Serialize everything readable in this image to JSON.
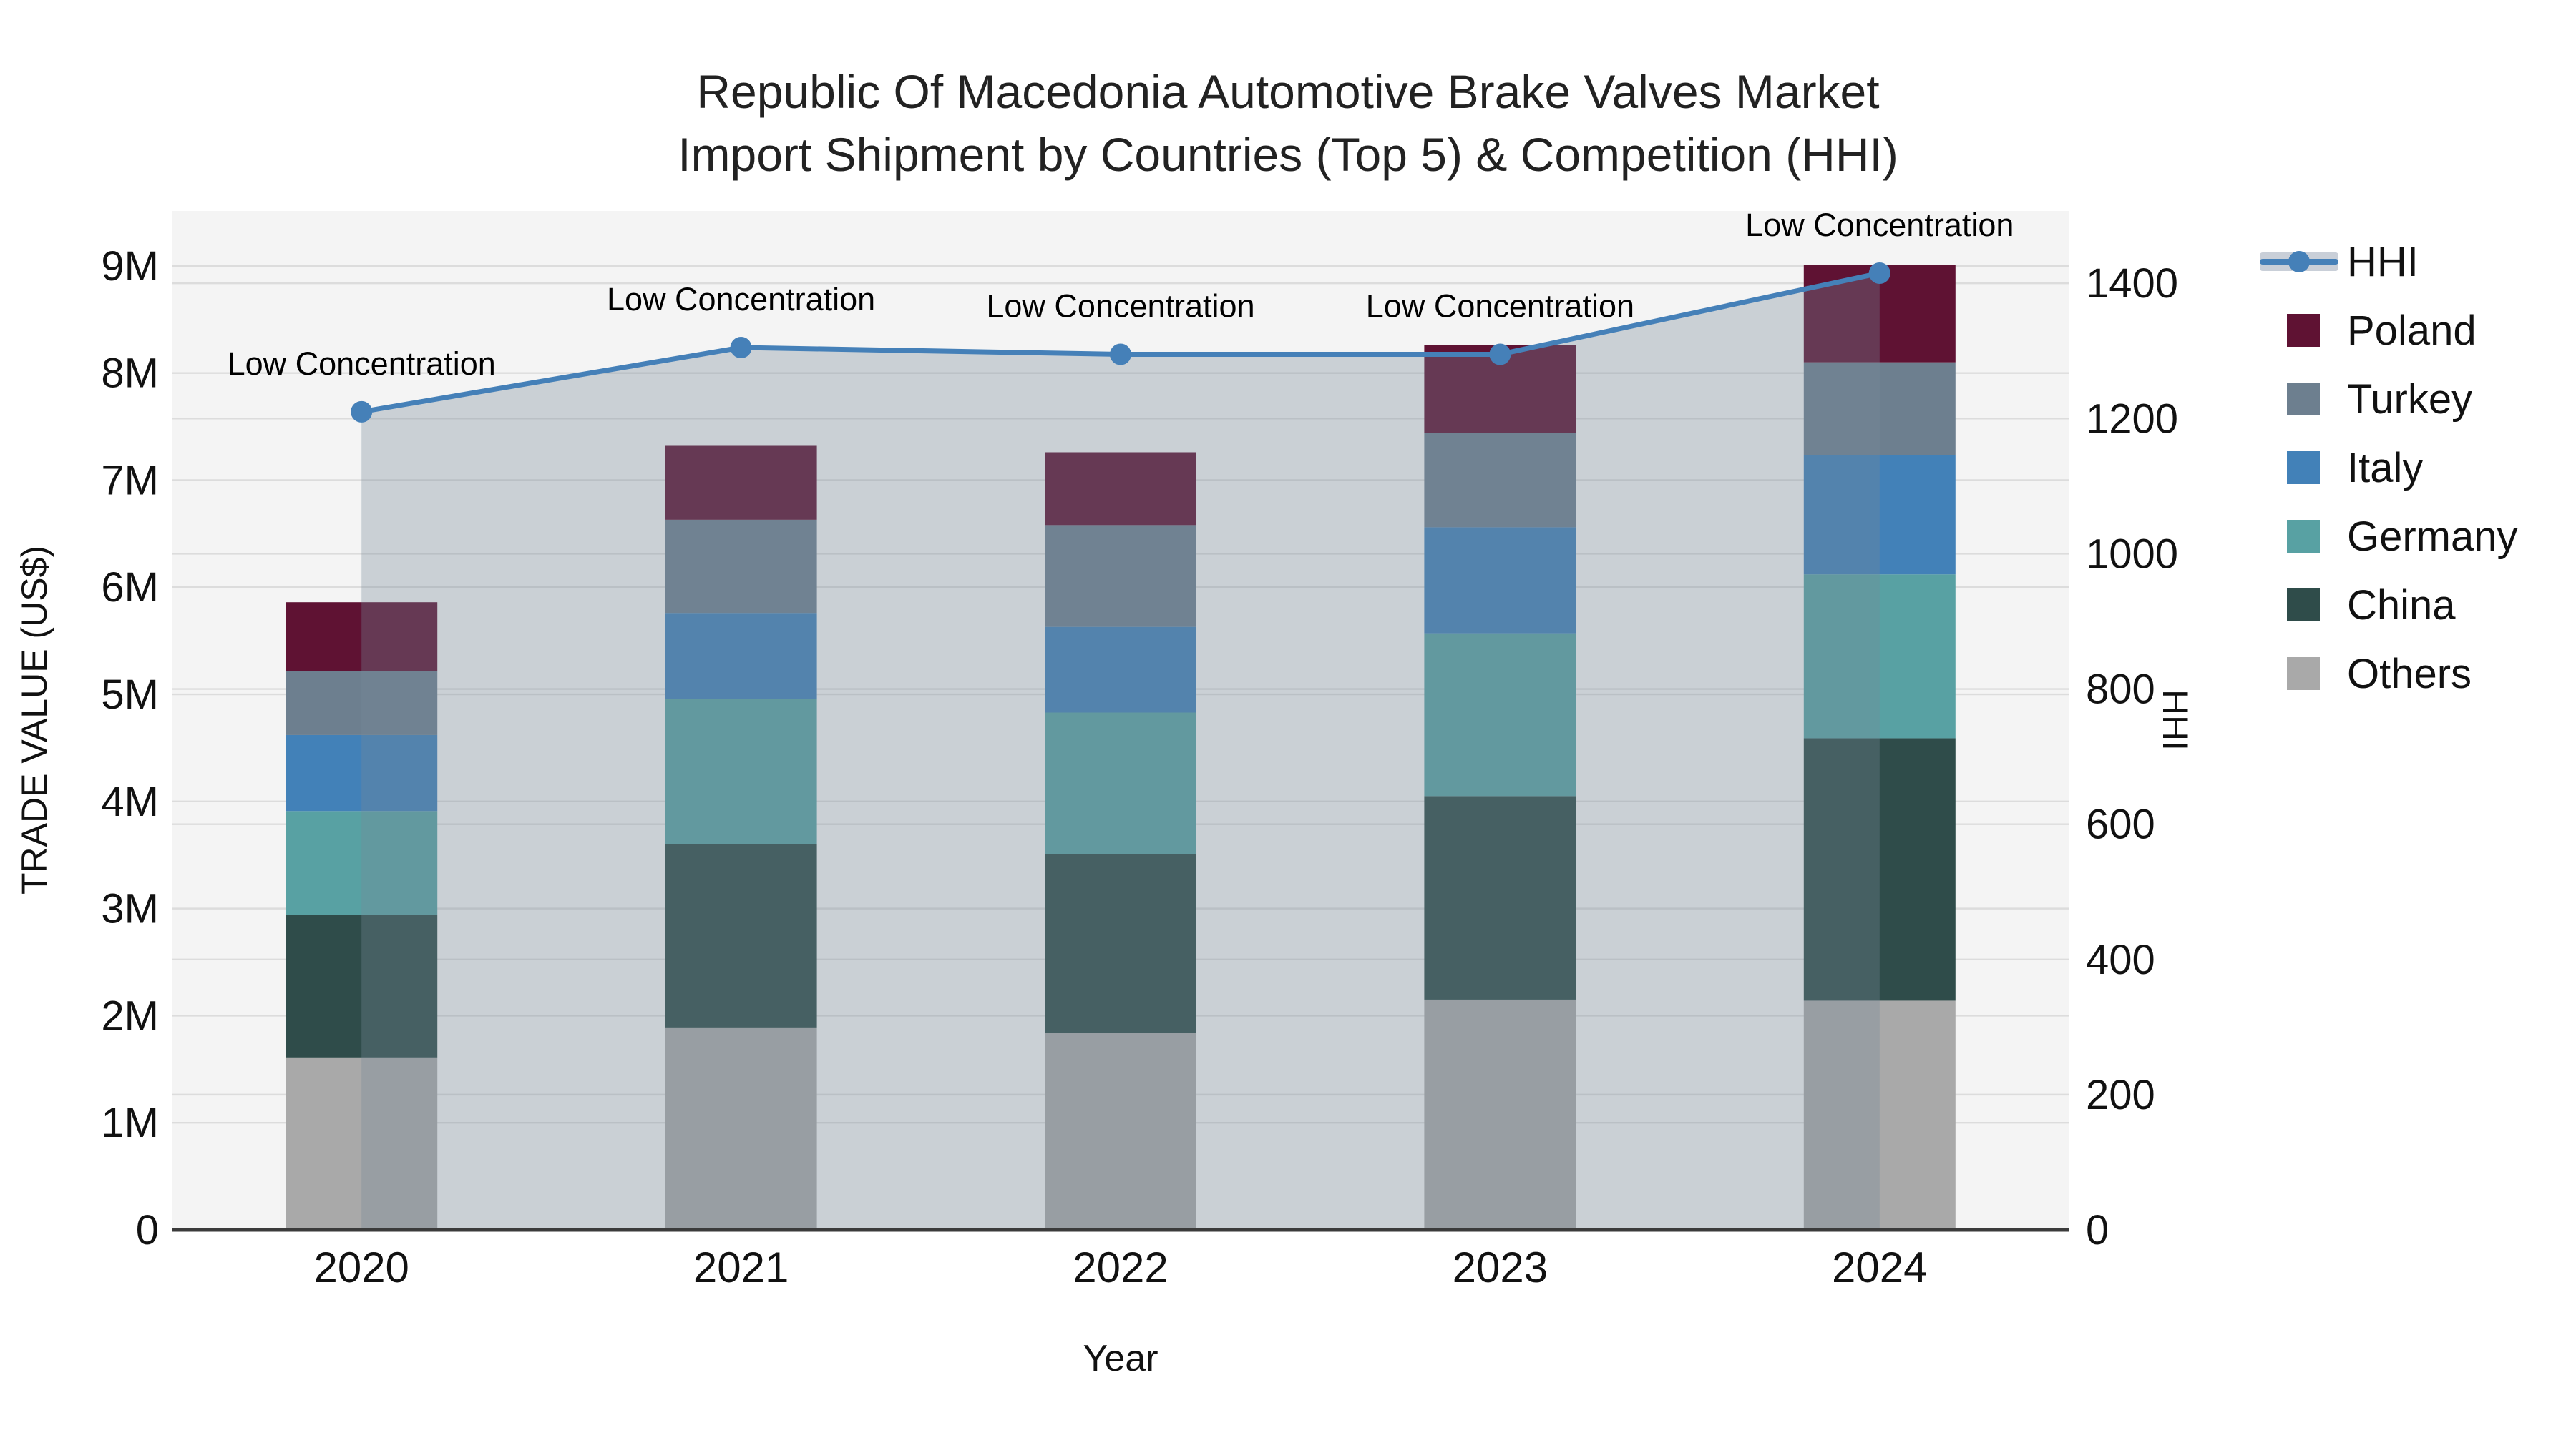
{
  "title": {
    "line1": "Republic Of Macedonia Automotive Brake Valves Market",
    "line2": "Import Shipment by Countries (Top 5) & Competition (HHI)"
  },
  "axes": {
    "x": {
      "title": "Year"
    },
    "y_left": {
      "title": "TRADE VALUE (US$)"
    },
    "y_right": {
      "title": "HHI"
    }
  },
  "legend": {
    "items": [
      {
        "label": "HHI",
        "swatch": "line",
        "color": "#4580B8"
      },
      {
        "label": "Poland",
        "swatch": "square",
        "color": "#5F1233"
      },
      {
        "label": "Turkey",
        "swatch": "square",
        "color": "#6D7F8F"
      },
      {
        "label": "Italy",
        "swatch": "square",
        "color": "#4281B8"
      },
      {
        "label": "Germany",
        "swatch": "square",
        "color": "#58A1A3"
      },
      {
        "label": "China",
        "swatch": "square",
        "color": "#2F4C4A"
      },
      {
        "label": "Others",
        "swatch": "square",
        "color": "#A9A9A9"
      }
    ]
  },
  "colors": {
    "figure_bg": "#ffffff",
    "plot_bg": "#f4f4f4",
    "grid": "#dcdcdc",
    "axis_line": "#3b3b3b",
    "text": "#111111",
    "hhi_line": "#4580B8",
    "hhi_area_fill": "rgba(119,136,153,0.33)"
  },
  "chart_data": {
    "type": "bar",
    "subtype": "stacked-bars-with-line-overlay-and-area-fill",
    "title": "Republic Of Macedonia Automotive Brake Valves Market Import Shipment by Countries (Top 5) & Competition (HHI)",
    "categories": [
      "2020",
      "2021",
      "2022",
      "2023",
      "2024"
    ],
    "xlabel": "Year",
    "ylabel_left": "TRADE VALUE (US$)",
    "ylabel_right": "HHI",
    "bar_stack_order_bottom_to_top": [
      "Others",
      "China",
      "Germany",
      "Italy",
      "Turkey",
      "Poland"
    ],
    "series": [
      {
        "name": "Others",
        "axis": "left",
        "color": "#A9A9A9",
        "values": [
          1610000,
          1890000,
          1840000,
          2150000,
          2140000
        ]
      },
      {
        "name": "China",
        "axis": "left",
        "color": "#2F4C4A",
        "values": [
          1330000,
          1710000,
          1670000,
          1900000,
          2450000
        ]
      },
      {
        "name": "Germany",
        "axis": "left",
        "color": "#58A1A3",
        "values": [
          970000,
          1360000,
          1320000,
          1520000,
          1530000
        ]
      },
      {
        "name": "Italy",
        "axis": "left",
        "color": "#4281B8",
        "values": [
          710000,
          800000,
          800000,
          990000,
          1110000
        ]
      },
      {
        "name": "Turkey",
        "axis": "left",
        "color": "#6D7F8F",
        "values": [
          600000,
          870000,
          950000,
          880000,
          870000
        ]
      },
      {
        "name": "Poland",
        "axis": "left",
        "color": "#5F1233",
        "values": [
          640000,
          690000,
          680000,
          820000,
          910000
        ]
      }
    ],
    "stack_totals": [
      5860000,
      7320000,
      7260000,
      8260000,
      9010000
    ],
    "line_series": {
      "name": "HHI",
      "axis": "right",
      "color": "#4580B8",
      "area_fill": "rgba(119,136,153,0.33)",
      "values": [
        1210,
        1305,
        1295,
        1295,
        1415
      ],
      "point_annotations": [
        "Low Concentration",
        "Low Concentration",
        "Low Concentration",
        "Low Concentration",
        "Low Concentration"
      ]
    },
    "y_left_ticks": [
      "0",
      "1M",
      "2M",
      "3M",
      "4M",
      "5M",
      "6M",
      "7M",
      "8M",
      "9M"
    ],
    "y_left_tick_values": [
      0,
      1000000,
      2000000,
      3000000,
      4000000,
      5000000,
      6000000,
      7000000,
      8000000,
      9000000
    ],
    "y_right_ticks": [
      "0",
      "200",
      "400",
      "600",
      "800",
      "1000",
      "1200",
      "1400"
    ],
    "y_right_tick_values": [
      0,
      200,
      400,
      600,
      800,
      1000,
      1200,
      1400
    ],
    "ylim_left": [
      0,
      9513000
    ],
    "ylim_right": [
      0,
      1507
    ],
    "grid": true,
    "legend_position": "right-top"
  }
}
